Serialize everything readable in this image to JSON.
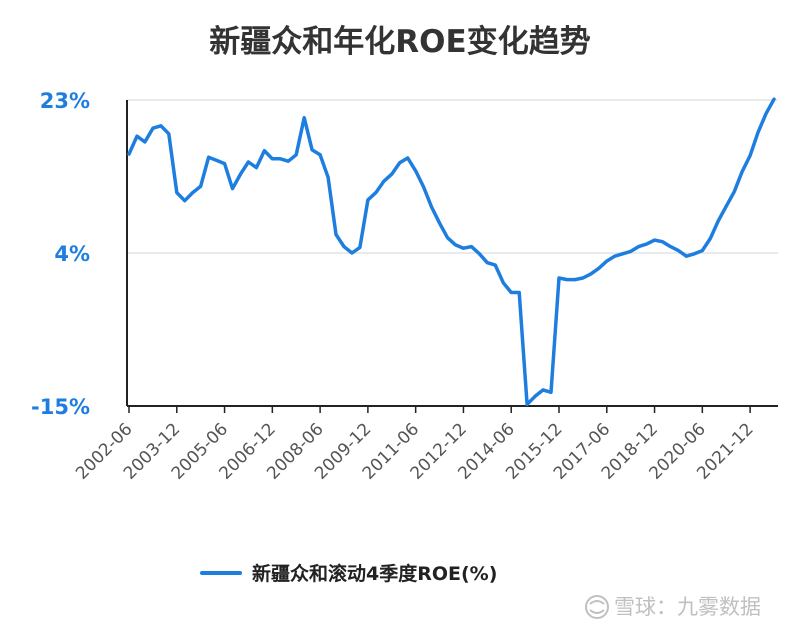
{
  "chart_data": {
    "type": "line",
    "title": "新疆众和年化ROE变化趋势",
    "xlabel": "",
    "ylabel": "",
    "ylim": [
      -15,
      23
    ],
    "yticks": [
      {
        "value": 23,
        "label": "23%"
      },
      {
        "value": 4,
        "label": "4%"
      },
      {
        "value": -15,
        "label": "-15%"
      }
    ],
    "x_tick_labels": [
      "2002-06",
      "2003-12",
      "2005-06",
      "2006-12",
      "2008-06",
      "2009-12",
      "2011-06",
      "2012-12",
      "2014-06",
      "2015-12",
      "2017-06",
      "2018-12",
      "2020-06",
      "2021-12"
    ],
    "grid": "horizontal",
    "legend_position": "bottom",
    "accent_color": "#1e7ee0",
    "series": [
      {
        "name": "新疆众和滚动4季度ROE(%)",
        "x": [
          "2002-06",
          "2002-09",
          "2002-12",
          "2003-03",
          "2003-06",
          "2003-09",
          "2003-12",
          "2004-03",
          "2004-06",
          "2004-09",
          "2004-12",
          "2005-03",
          "2005-06",
          "2005-09",
          "2005-12",
          "2006-03",
          "2006-06",
          "2006-09",
          "2006-12",
          "2007-03",
          "2007-06",
          "2007-09",
          "2007-12",
          "2008-03",
          "2008-06",
          "2008-09",
          "2008-12",
          "2009-03",
          "2009-06",
          "2009-09",
          "2009-12",
          "2010-03",
          "2010-06",
          "2010-09",
          "2010-12",
          "2011-03",
          "2011-06",
          "2011-09",
          "2011-12",
          "2012-03",
          "2012-06",
          "2012-09",
          "2012-12",
          "2013-03",
          "2013-06",
          "2013-09",
          "2013-12",
          "2014-03",
          "2014-06",
          "2014-09",
          "2014-12",
          "2015-03",
          "2015-06",
          "2015-09",
          "2015-12",
          "2016-03",
          "2016-06",
          "2016-09",
          "2016-12",
          "2017-03",
          "2017-06",
          "2017-09",
          "2017-12",
          "2018-03",
          "2018-06",
          "2018-09",
          "2018-12",
          "2019-03",
          "2019-06",
          "2019-09",
          "2019-12",
          "2020-03",
          "2020-06",
          "2020-09",
          "2020-12",
          "2021-03",
          "2021-06",
          "2021-09",
          "2021-12",
          "2022-03",
          "2022-06",
          "2022-09"
        ],
        "values": [
          16.3,
          18.5,
          17.8,
          19.5,
          19.8,
          18.8,
          11.5,
          10.5,
          11.5,
          12.3,
          15.9,
          15.5,
          15.1,
          12.0,
          13.8,
          15.3,
          14.6,
          16.7,
          15.7,
          15.7,
          15.4,
          16.2,
          20.8,
          16.8,
          16.2,
          13.4,
          6.3,
          4.8,
          4.0,
          4.7,
          10.6,
          11.5,
          12.9,
          13.8,
          15.2,
          15.8,
          14.2,
          12.2,
          9.7,
          7.7,
          5.9,
          5.0,
          4.6,
          4.8,
          3.9,
          2.8,
          2.5,
          0.3,
          -0.9,
          -0.9,
          -14.8,
          -13.8,
          -13.0,
          -13.3,
          0.9,
          0.7,
          0.7,
          0.9,
          1.4,
          2.1,
          3.0,
          3.6,
          3.9,
          4.2,
          4.8,
          5.1,
          5.6,
          5.4,
          4.8,
          4.3,
          3.6,
          3.9,
          4.3,
          5.8,
          8.0,
          9.8,
          11.6,
          14.1,
          16.1,
          19.0,
          21.3,
          23.1
        ]
      }
    ]
  },
  "watermark": {
    "separator": "：",
    "brand": "雪球",
    "author": "九雾数据"
  }
}
